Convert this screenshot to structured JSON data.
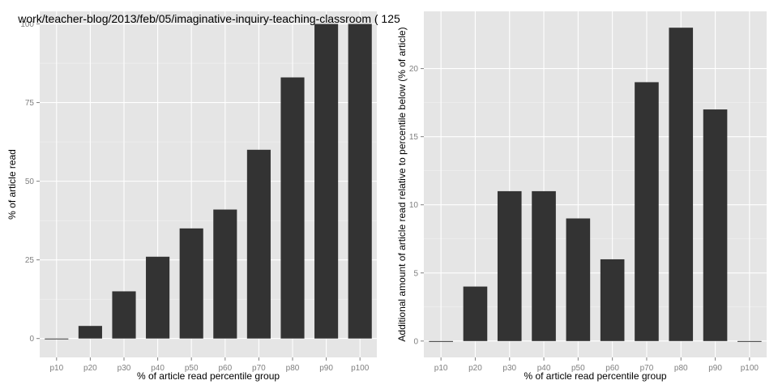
{
  "chart_data": [
    {
      "type": "bar",
      "title": "work/teacher-blog/2013/feb/05/imaginative-inquiry-teaching-classroom ( 125",
      "xlabel": "% of article read percentile group",
      "ylabel": "% of article read",
      "categories": [
        "p10",
        "p20",
        "p30",
        "p40",
        "p50",
        "p60",
        "p70",
        "p80",
        "p90",
        "p100"
      ],
      "values": [
        0,
        4,
        15,
        26,
        35,
        41,
        60,
        83,
        100,
        100
      ],
      "ylim": [
        -6,
        104
      ],
      "yticks": [
        0,
        25,
        50,
        75,
        100
      ],
      "grid": true
    },
    {
      "type": "bar",
      "title": "",
      "xlabel": "% of article read percentile group",
      "ylabel": "Additional amount of article read relative to percentile below (% of article)",
      "categories": [
        "p10",
        "p20",
        "p30",
        "p40",
        "p50",
        "p60",
        "p70",
        "p80",
        "p90",
        "p100"
      ],
      "values": [
        0,
        4,
        11,
        11,
        9,
        6,
        19,
        23,
        17,
        0
      ],
      "ylim": [
        -1.2,
        24.2
      ],
      "yticks": [
        0,
        5,
        10,
        15,
        20
      ],
      "grid": true
    }
  ]
}
